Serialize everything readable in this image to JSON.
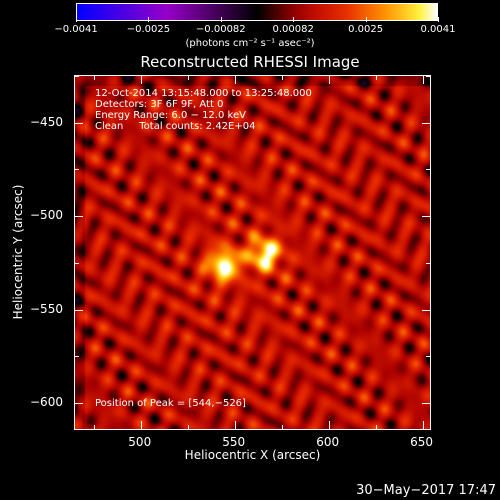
{
  "colorbar": {
    "labels": [
      "−0.0041",
      "−0.0025",
      "−0.00082",
      "0.00082",
      "0.0025",
      "0.0041"
    ],
    "units": "(photons cm⁻² s⁻¹ asec⁻²)",
    "range": [
      -0.0041,
      0.0041
    ]
  },
  "title": "Reconstructed RHESSI Image",
  "annotations": {
    "time": "12-Oct-2014 13:15:48.000 to 13:25:48.000",
    "detectors": "Detectors: 3F 6F 9F, Att 0",
    "energy": "Energy Range: 6.0 − 12.0 keV",
    "clean": "Clean     Total counts: 2.42E+04",
    "peak": "Position of Peak = [544,−526]"
  },
  "axes": {
    "xlabel": "Heliocentric X (arcsec)",
    "ylabel": "Heliocentric Y (arcsec)",
    "xlim": [
      465,
      655
    ],
    "ylim": [
      -615,
      -425
    ],
    "xticks": [
      "500",
      "550",
      "600",
      "650"
    ],
    "xtick_values": [
      500,
      550,
      600,
      650
    ],
    "yticks": [
      "−450",
      "−500",
      "−550",
      "−600"
    ],
    "ytick_values": [
      -450,
      -500,
      -550,
      -600
    ]
  },
  "sources": [
    {
      "x": 544,
      "y": -526,
      "peak": 1.0
    },
    {
      "x": 566,
      "y": -520,
      "peak": 0.95
    }
  ],
  "timestamp": "30−May−2017 17:47"
}
